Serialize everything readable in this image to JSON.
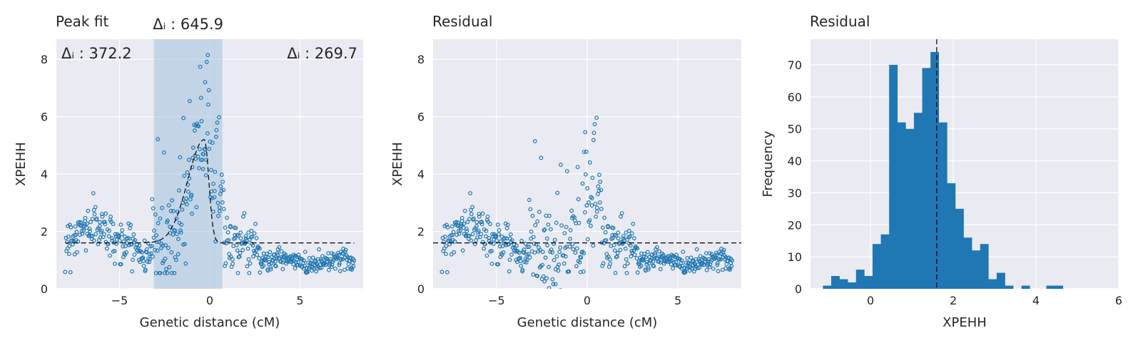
{
  "colors": {
    "face": "#eaeaf2",
    "grid": "#ffffff",
    "point": "#1f77b4",
    "bar": "#1f77b4",
    "band": "#a9c4df",
    "line": "#000000"
  },
  "chart_data": [
    {
      "type": "scatter",
      "title": "Peak fit",
      "xlabel": "Genetic distance (cM)",
      "ylabel": "XPEHH",
      "xlim": [
        -8.5,
        8.5
      ],
      "ylim": [
        0,
        8.7
      ],
      "xticks": [
        -5,
        0,
        5
      ],
      "xtick_labels": [
        "−5",
        "0",
        "5"
      ],
      "yticks": [
        0,
        2,
        4,
        6,
        8
      ],
      "ytick_labels": [
        "0",
        "2",
        "4",
        "6",
        "8"
      ],
      "grid": true,
      "span": {
        "x0": -3.1,
        "x1": 0.7
      },
      "fit_line": {
        "baseline": 1.6,
        "peak_x": -0.3,
        "peak_y": 5.2,
        "x_start": -8,
        "x_end": 8,
        "left_width": 1.3,
        "right_width": 0.35
      },
      "annotations": {
        "left": {
          "text": "Δᵢ : 372.2"
        },
        "center": {
          "text": "Δᵢ : 645.9"
        },
        "right": {
          "text": "Δᵢ : 269.7"
        }
      },
      "points": "model: baseline 1.9 left of -4.5, dip ~1.1 at -3.5, peak ~5 at -0.3 with scatter up to 8.3, decay to ~1.6 then ~0.9 for x>2.5"
    },
    {
      "type": "scatter",
      "title": "Residual",
      "xlabel": "Genetic distance (cM)",
      "ylabel": "XPEHH",
      "xlim": [
        -8.5,
        8.5
      ],
      "ylim": [
        0,
        8.7
      ],
      "xticks": [
        -5,
        0,
        5
      ],
      "xtick_labels": [
        "−5",
        "0",
        "5"
      ],
      "yticks": [
        0,
        2,
        4,
        6,
        8
      ],
      "ytick_labels": [
        "0",
        "2",
        "4",
        "6",
        "8"
      ],
      "grid": true,
      "hline": 1.6
    },
    {
      "type": "bar",
      "title": "Residual",
      "xlabel": "XPEHH",
      "ylabel": "Frequency",
      "xlim": [
        -1.45,
        6.0
      ],
      "ylim": [
        0,
        78
      ],
      "xticks": [
        0,
        2,
        4,
        6
      ],
      "xtick_labels": [
        "0",
        "2",
        "4",
        "6"
      ],
      "yticks": [
        0,
        10,
        20,
        30,
        40,
        50,
        60,
        70
      ],
      "ytick_labels": [
        "0",
        "10",
        "20",
        "30",
        "40",
        "50",
        "60",
        "70"
      ],
      "grid": true,
      "vline": 1.6,
      "bin_start": -1.15,
      "bin_width": 0.2,
      "values": [
        1,
        4,
        3,
        2,
        6,
        4,
        14,
        17,
        70,
        52,
        50,
        55,
        69,
        74,
        52,
        33,
        25,
        16,
        12,
        14,
        3,
        5,
        1,
        0,
        1,
        0,
        0,
        1,
        1
      ]
    }
  ]
}
